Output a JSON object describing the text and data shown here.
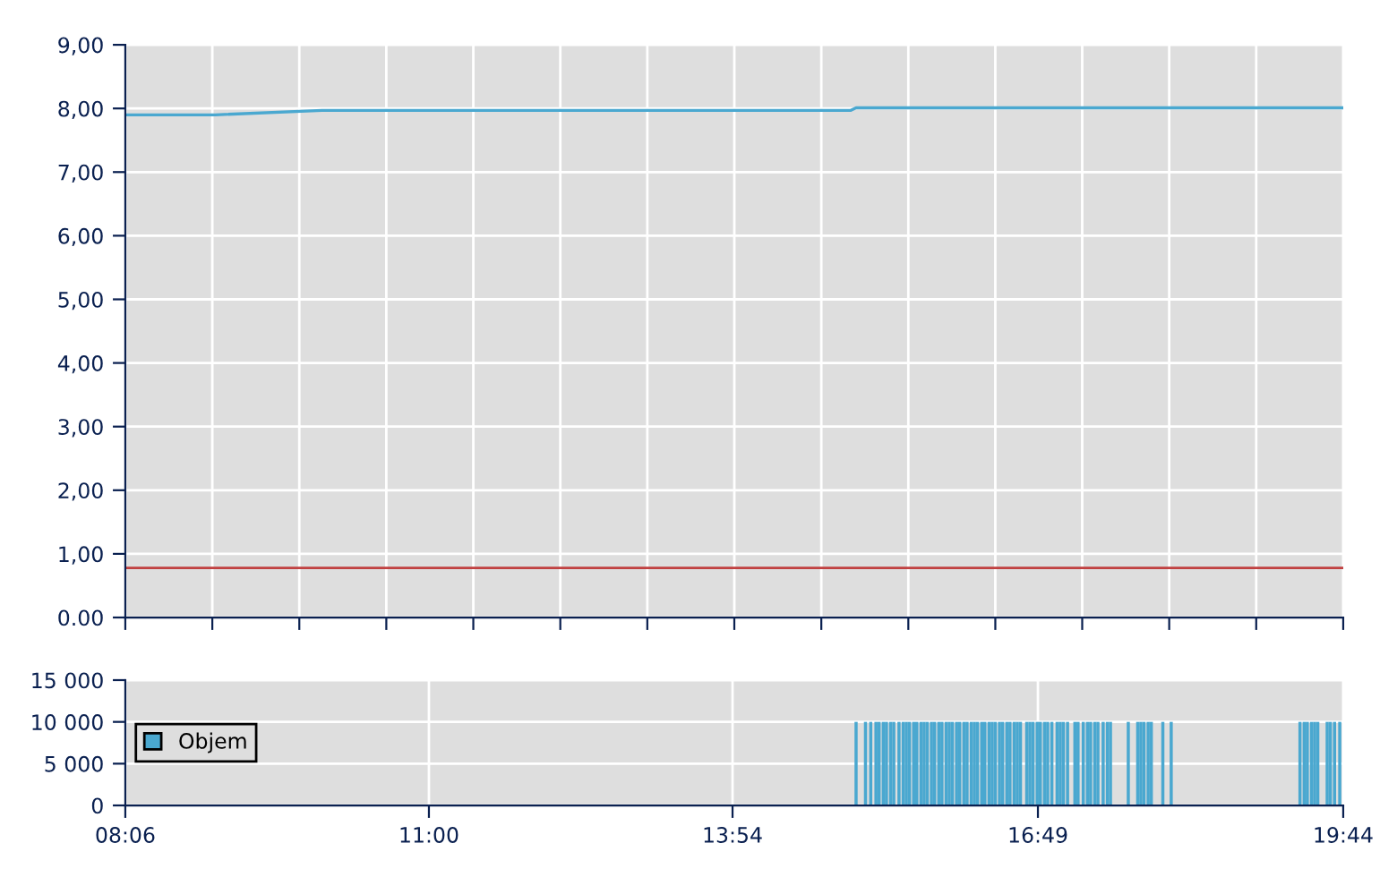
{
  "chart_data": [
    {
      "type": "line",
      "x": [
        8.1,
        8.96,
        9.98,
        15.03,
        15.08,
        19.733
      ],
      "series": [
        {
          "color": "#4aa8d0",
          "values": [
            7.9,
            7.9,
            7.97,
            7.97,
            8.01,
            8.01
          ]
        }
      ],
      "xlim": [
        8.1,
        19.733
      ],
      "xticks": [
        {
          "value": 8.1,
          "label": null
        },
        {
          "value": 8.931,
          "label": null
        },
        {
          "value": 9.762,
          "label": null
        },
        {
          "value": 10.593,
          "label": null
        },
        {
          "value": 11.424,
          "label": null
        },
        {
          "value": 12.255,
          "label": null
        },
        {
          "value": 13.086,
          "label": null
        },
        {
          "value": 13.917,
          "label": null
        },
        {
          "value": 14.748,
          "label": null
        },
        {
          "value": 15.579,
          "label": null
        },
        {
          "value": 16.41,
          "label": null
        },
        {
          "value": 17.24,
          "label": null
        },
        {
          "value": 18.071,
          "label": null
        },
        {
          "value": 18.902,
          "label": null
        },
        {
          "value": 19.733,
          "label": null
        }
      ],
      "ylim": [
        0,
        9
      ],
      "yticks": [
        {
          "value": 0,
          "label": "0.00"
        },
        {
          "value": 1,
          "label": "1,00"
        },
        {
          "value": 2,
          "label": "2,00"
        },
        {
          "value": 3,
          "label": "3,00"
        },
        {
          "value": 4,
          "label": "4,00"
        },
        {
          "value": 5,
          "label": "5,00"
        },
        {
          "value": 6,
          "label": "6,00"
        },
        {
          "value": 7,
          "label": "7,00"
        },
        {
          "value": 8,
          "label": "8,00"
        },
        {
          "value": 9,
          "label": "9,00"
        }
      ],
      "ref_lines": [
        {
          "axis": "y",
          "value": 0.78,
          "color": "#c04040"
        }
      ],
      "grid": true,
      "legend": false,
      "tick_labels": "y",
      "marker": "none"
    },
    {
      "type": "bar",
      "x": [
        15.08,
        15.17,
        15.22,
        15.27,
        15.3,
        15.34,
        15.37,
        15.41,
        15.44,
        15.49,
        15.53,
        15.56,
        15.59,
        15.63,
        15.66,
        15.7,
        15.73,
        15.76,
        15.8,
        15.83,
        15.87,
        15.9,
        15.94,
        15.97,
        16.0,
        16.04,
        16.07,
        16.11,
        16.14,
        16.18,
        16.21,
        16.24,
        16.28,
        16.31,
        16.35,
        16.38,
        16.41,
        16.45,
        16.48,
        16.52,
        16.55,
        16.59,
        16.62,
        16.65,
        16.71,
        16.74,
        16.77,
        16.81,
        16.84,
        16.88,
        16.91,
        16.95,
        17.0,
        17.03,
        17.06,
        17.1,
        17.17,
        17.2,
        17.25,
        17.29,
        17.32,
        17.36,
        17.39,
        17.44,
        17.48,
        17.51,
        17.68,
        17.77,
        17.8,
        17.83,
        17.87,
        17.9,
        18.01,
        18.09,
        19.32,
        19.36,
        19.39,
        19.43,
        19.46,
        19.49,
        19.58,
        19.61,
        19.65,
        19.7
      ],
      "series": [
        {
          "name": "Objem",
          "color": "#4aa8d0",
          "values": [
            10000,
            10000,
            10000,
            10000,
            10000,
            10000,
            10000,
            10000,
            10000,
            10000,
            10000,
            10000,
            10000,
            10000,
            10000,
            10000,
            10000,
            10000,
            10000,
            10000,
            10000,
            10000,
            10000,
            10000,
            10000,
            10000,
            10000,
            10000,
            10000,
            10000,
            10000,
            10000,
            10000,
            10000,
            10000,
            10000,
            10000,
            10000,
            10000,
            10000,
            10000,
            10000,
            10000,
            10000,
            10000,
            10000,
            10000,
            10000,
            10000,
            10000,
            10000,
            10000,
            10000,
            10000,
            10000,
            10000,
            10000,
            10000,
            10000,
            10000,
            10000,
            10000,
            10000,
            10000,
            10000,
            10000,
            10000,
            10000,
            10000,
            10000,
            10000,
            10000,
            10000,
            10000,
            10000,
            10000,
            10000,
            10000,
            10000,
            10000,
            10000,
            10000,
            10000,
            10000
          ]
        }
      ],
      "xlim": [
        8.1,
        19.733
      ],
      "xticks": [
        {
          "value": 8.1,
          "label": "08:06"
        },
        {
          "value": 11.0,
          "label": "11:00"
        },
        {
          "value": 13.9,
          "label": "13:54"
        },
        {
          "value": 16.817,
          "label": "16:49"
        },
        {
          "value": 19.733,
          "label": "19:44"
        }
      ],
      "ylim": [
        0,
        15000
      ],
      "yticks": [
        {
          "value": 0,
          "label": "0"
        },
        {
          "value": 5000,
          "label": "5 000"
        },
        {
          "value": 10000,
          "label": "10 000"
        },
        {
          "value": 15000,
          "label": "15 000"
        }
      ],
      "grid": true,
      "legend": "left"
    }
  ]
}
